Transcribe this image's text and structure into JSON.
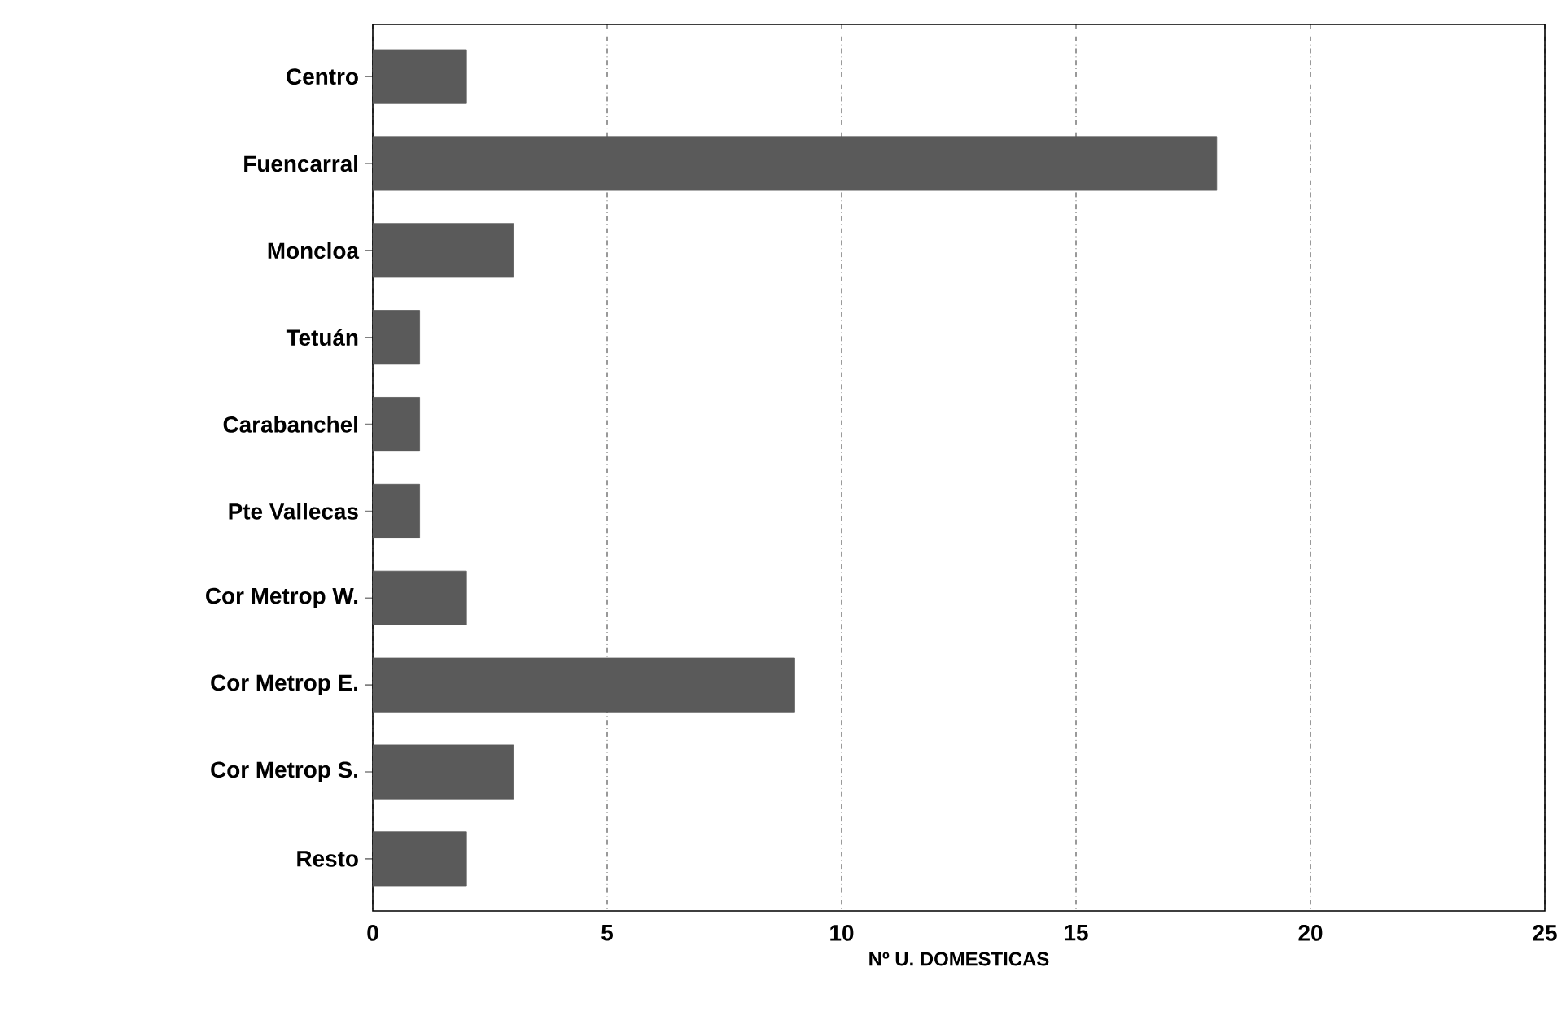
{
  "chart_data": {
    "type": "bar",
    "orientation": "horizontal",
    "xlabel": "Nº U. DOMESTICAS",
    "categories": [
      "Centro",
      "Fuencarral",
      "Moncloa",
      "Tetuán",
      "Carabanchel",
      "Pte Vallecas",
      "Cor Metrop W.",
      "Cor Metrop E.",
      "Cor Metrop S.",
      "Resto"
    ],
    "values": [
      2,
      18,
      3,
      1,
      1,
      1,
      2,
      9,
      3,
      2
    ],
    "color": "#5a5a5a",
    "xlim": [
      0,
      25
    ],
    "xticks": [
      0,
      5,
      10,
      15,
      20,
      25
    ],
    "grid": "x"
  }
}
